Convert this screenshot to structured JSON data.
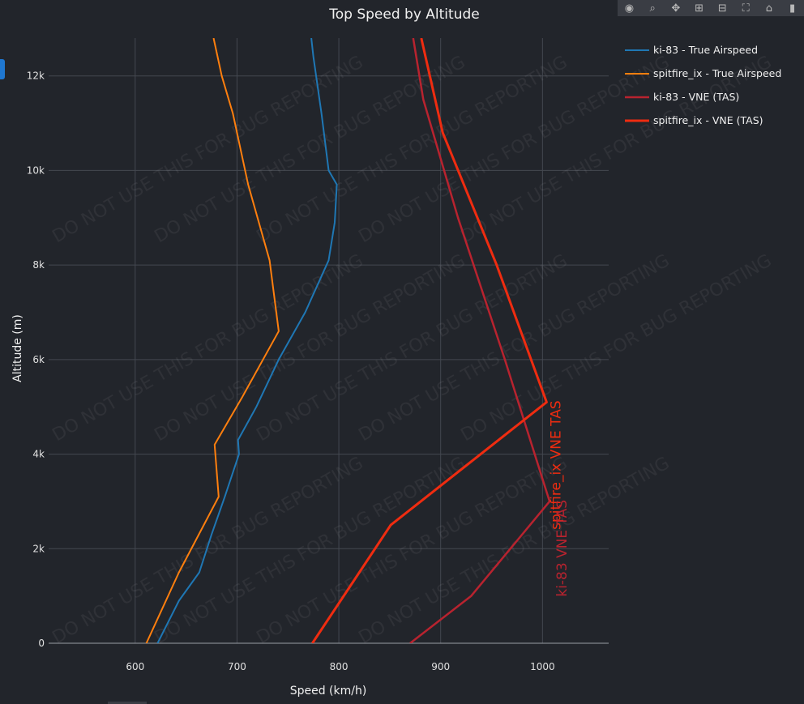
{
  "chart_data": {
    "type": "line",
    "title": "Top Speed by Altitude",
    "xlabel": "Speed (km/h)",
    "ylabel": "Altitude (m)",
    "xlim": [
      515,
      1065
    ],
    "ylim": [
      0,
      12800
    ],
    "x_ticks": [
      600,
      700,
      800,
      900,
      1000
    ],
    "x_tick_labels": [
      "600",
      "700",
      "800",
      "900",
      "1000"
    ],
    "y_ticks": [
      0,
      2000,
      4000,
      6000,
      8000,
      10000,
      12000
    ],
    "y_tick_labels": [
      "0",
      "2k",
      "4k",
      "6k",
      "8k",
      "10k",
      "12k"
    ],
    "grid": true,
    "legend_position": "top-right",
    "series": [
      {
        "name": "ki-83 - True Airspeed",
        "color": "#1f77b4",
        "width": 2,
        "points": [
          [
            622,
            0
          ],
          [
            643,
            900
          ],
          [
            663,
            1500
          ],
          [
            675,
            2300
          ],
          [
            688,
            3100
          ],
          [
            702,
            4000
          ],
          [
            701,
            4300
          ],
          [
            719,
            5000
          ],
          [
            741,
            6000
          ],
          [
            767,
            7000
          ],
          [
            790,
            8100
          ],
          [
            796,
            8900
          ],
          [
            798,
            9700
          ],
          [
            790,
            10000
          ],
          [
            783,
            11200
          ],
          [
            775,
            12400
          ],
          [
            773,
            12800
          ]
        ]
      },
      {
        "name": "spitfire_ix - True Airspeed",
        "color": "#ff7f0e",
        "width": 2,
        "points": [
          [
            611,
            0
          ],
          [
            643,
            1500
          ],
          [
            682,
            3100
          ],
          [
            678,
            4200
          ],
          [
            705,
            5200
          ],
          [
            741,
            6600
          ],
          [
            732,
            8100
          ],
          [
            711,
            9700
          ],
          [
            696,
            11200
          ],
          [
            685,
            12000
          ],
          [
            677,
            12800
          ]
        ]
      },
      {
        "name": "ki-83 - VNE (TAS)",
        "color": "#b8232f",
        "width": 2.5,
        "points": [
          [
            870,
            0
          ],
          [
            930,
            1000
          ],
          [
            1007,
            3000
          ],
          [
            963,
            6000
          ],
          [
            917,
            9000
          ],
          [
            883,
            11500
          ],
          [
            873,
            12800
          ]
        ]
      },
      {
        "name": "spitfire_ix - VNE (TAS)",
        "color": "#ef2c10",
        "width": 3,
        "points": [
          [
            774,
            0
          ],
          [
            851,
            2500
          ],
          [
            1004,
            5100
          ],
          [
            955,
            8000
          ],
          [
            902,
            10800
          ],
          [
            881,
            12800
          ]
        ]
      }
    ],
    "annotations": [
      {
        "text": "spitfire_ix VNE TAS",
        "color": "#ef2c10",
        "x": 1000,
        "y": 5100
      },
      {
        "text": "ki-83 VNE TAS",
        "color": "#b8232f",
        "x": 1006,
        "y": 3000
      }
    ],
    "watermark": "DO NOT USE THIS FOR BUG REPORTING"
  }
}
